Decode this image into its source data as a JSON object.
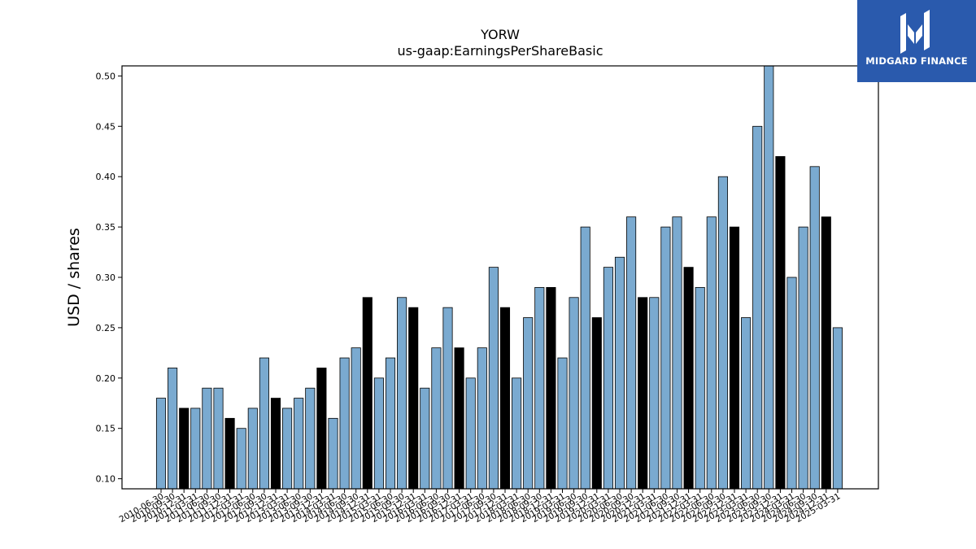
{
  "chart_data": {
    "type": "bar",
    "title": "YORW",
    "subtitle": "us-gaap:EarningsPerShareBasic",
    "xlabel": "",
    "ylabel": "USD / shares",
    "ylim": [
      0.09,
      0.51
    ],
    "yticks": [
      "0.10",
      "0.15",
      "0.20",
      "0.25",
      "0.30",
      "0.35",
      "0.40",
      "0.45",
      "0.50"
    ],
    "grid": false,
    "colors": {
      "default": "#7aaad0",
      "highlight": "#000000",
      "edge": "#000000"
    },
    "categories": [
      "2010-06-30",
      "2010-09-30",
      "2010-12-31",
      "2011-03-31",
      "2011-06-30",
      "2011-09-30",
      "2011-12-31",
      "2012-03-31",
      "2012-06-30",
      "2012-09-30",
      "2012-12-31",
      "2013-03-31",
      "2013-06-30",
      "2013-09-30",
      "2013-12-31",
      "2014-03-31",
      "2014-06-30",
      "2014-09-30",
      "2014-12-31",
      "2015-03-31",
      "2015-06-30",
      "2015-09-30",
      "2015-12-31",
      "2016-03-31",
      "2016-06-30",
      "2016-09-30",
      "2016-12-31",
      "2017-03-31",
      "2017-06-30",
      "2017-09-30",
      "2017-12-31",
      "2018-03-31",
      "2018-06-30",
      "2018-09-30",
      "2018-12-31",
      "2019-03-31",
      "2019-06-30",
      "2019-09-30",
      "2019-12-31",
      "2020-03-31",
      "2020-06-30",
      "2020-09-30",
      "2020-12-31",
      "2021-03-31",
      "2021-06-30",
      "2021-09-30",
      "2021-12-31",
      "2022-03-31",
      "2022-06-30",
      "2022-09-30",
      "2022-12-31",
      "2023-03-31",
      "2023-06-30",
      "2023-09-30",
      "2023-12-31",
      "2024-03-31",
      "2024-06-30",
      "2024-09-30",
      "2024-12-31",
      "2025-03-31"
    ],
    "values": [
      0.18,
      0.21,
      0.17,
      0.17,
      0.19,
      0.19,
      0.16,
      0.15,
      0.17,
      0.22,
      0.18,
      0.17,
      0.18,
      0.19,
      0.21,
      0.16,
      0.22,
      0.23,
      0.28,
      0.2,
      0.22,
      0.28,
      0.27,
      0.19,
      0.23,
      0.27,
      0.23,
      0.2,
      0.23,
      0.31,
      0.27,
      0.2,
      0.26,
      0.29,
      0.29,
      0.22,
      0.28,
      0.35,
      0.26,
      0.31,
      0.32,
      0.36,
      0.28,
      0.28,
      0.35,
      0.36,
      0.31,
      0.29,
      0.36,
      0.4,
      0.35,
      0.26,
      0.45,
      0.51,
      0.42,
      0.3,
      0.35,
      0.41,
      0.36,
      0.25
    ],
    "highlighted": [
      false,
      false,
      true,
      false,
      false,
      false,
      true,
      false,
      false,
      false,
      true,
      false,
      false,
      false,
      true,
      false,
      false,
      false,
      true,
      false,
      false,
      false,
      true,
      false,
      false,
      false,
      true,
      false,
      false,
      false,
      true,
      false,
      false,
      false,
      true,
      false,
      false,
      false,
      true,
      false,
      false,
      false,
      true,
      false,
      false,
      false,
      true,
      false,
      false,
      false,
      true,
      false,
      false,
      false,
      true,
      false,
      false,
      false,
      true,
      false
    ]
  },
  "logo": {
    "name": "MIDGARD FINANCE",
    "background": "#2a5aad"
  }
}
